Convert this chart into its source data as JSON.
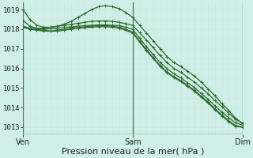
{
  "bg_color": "#ceeee6",
  "grid_color_v": "#c8e8e0",
  "grid_color_h": "#c8e8e0",
  "line_color": "#2d6a2d",
  "vline_color": "#4a7a4a",
  "border_color": "#336633",
  "ylabel_range": [
    1013,
    1019
  ],
  "yticks": [
    1013,
    1014,
    1015,
    1016,
    1017,
    1018,
    1019
  ],
  "xlabel": "Pression niveau de la mer( hPa )",
  "xtick_labels": [
    "Ven",
    "Sam",
    "Dim"
  ],
  "xtick_positions": [
    0,
    16,
    32
  ],
  "num_points": 33,
  "series": [
    [
      1019.0,
      1018.5,
      1018.2,
      1018.1,
      1018.1,
      1018.15,
      1018.25,
      1018.4,
      1018.6,
      1018.8,
      1019.0,
      1019.15,
      1019.2,
      1019.15,
      1019.05,
      1018.85,
      1018.6,
      1018.2,
      1017.8,
      1017.4,
      1017.0,
      1016.6,
      1016.3,
      1016.1,
      1015.85,
      1015.6,
      1015.3,
      1014.95,
      1014.6,
      1014.2,
      1013.85,
      1013.45,
      1013.2
    ],
    [
      1018.45,
      1018.15,
      1018.05,
      1018.05,
      1018.1,
      1018.15,
      1018.2,
      1018.25,
      1018.3,
      1018.35,
      1018.4,
      1018.42,
      1018.42,
      1018.4,
      1018.35,
      1018.28,
      1018.2,
      1017.82,
      1017.45,
      1017.05,
      1016.65,
      1016.3,
      1016.0,
      1015.8,
      1015.55,
      1015.3,
      1015.0,
      1014.7,
      1014.35,
      1014.05,
      1013.7,
      1013.4,
      1013.2
    ],
    [
      1018.1,
      1018.05,
      1018.0,
      1018.0,
      1018.02,
      1018.05,
      1018.1,
      1018.12,
      1018.15,
      1018.18,
      1018.2,
      1018.22,
      1018.22,
      1018.2,
      1018.18,
      1018.1,
      1018.0,
      1017.55,
      1017.1,
      1016.7,
      1016.3,
      1016.0,
      1015.72,
      1015.52,
      1015.27,
      1015.02,
      1014.72,
      1014.42,
      1014.08,
      1013.78,
      1013.48,
      1013.22,
      1013.1
    ],
    [
      1018.1,
      1018.0,
      1017.95,
      1017.9,
      1017.9,
      1017.95,
      1018.0,
      1018.05,
      1018.08,
      1018.12,
      1018.15,
      1018.18,
      1018.18,
      1018.15,
      1018.1,
      1018.0,
      1017.85,
      1017.4,
      1016.95,
      1016.55,
      1016.15,
      1015.82,
      1015.57,
      1015.38,
      1015.13,
      1014.88,
      1014.58,
      1014.28,
      1013.93,
      1013.63,
      1013.33,
      1013.08,
      1013.0
    ],
    [
      1018.15,
      1018.05,
      1018.0,
      1017.95,
      1017.9,
      1017.9,
      1017.95,
      1018.0,
      1018.05,
      1018.08,
      1018.1,
      1018.13,
      1018.13,
      1018.1,
      1018.05,
      1017.95,
      1017.8,
      1017.35,
      1016.9,
      1016.5,
      1016.1,
      1015.78,
      1015.53,
      1015.33,
      1015.08,
      1014.83,
      1014.53,
      1014.23,
      1013.88,
      1013.58,
      1013.28,
      1013.03,
      1013.0
    ]
  ],
  "marker_size": 3.0,
  "line_width": 0.9,
  "tick_fontsize": 6.5,
  "xlabel_fontsize": 8.0
}
